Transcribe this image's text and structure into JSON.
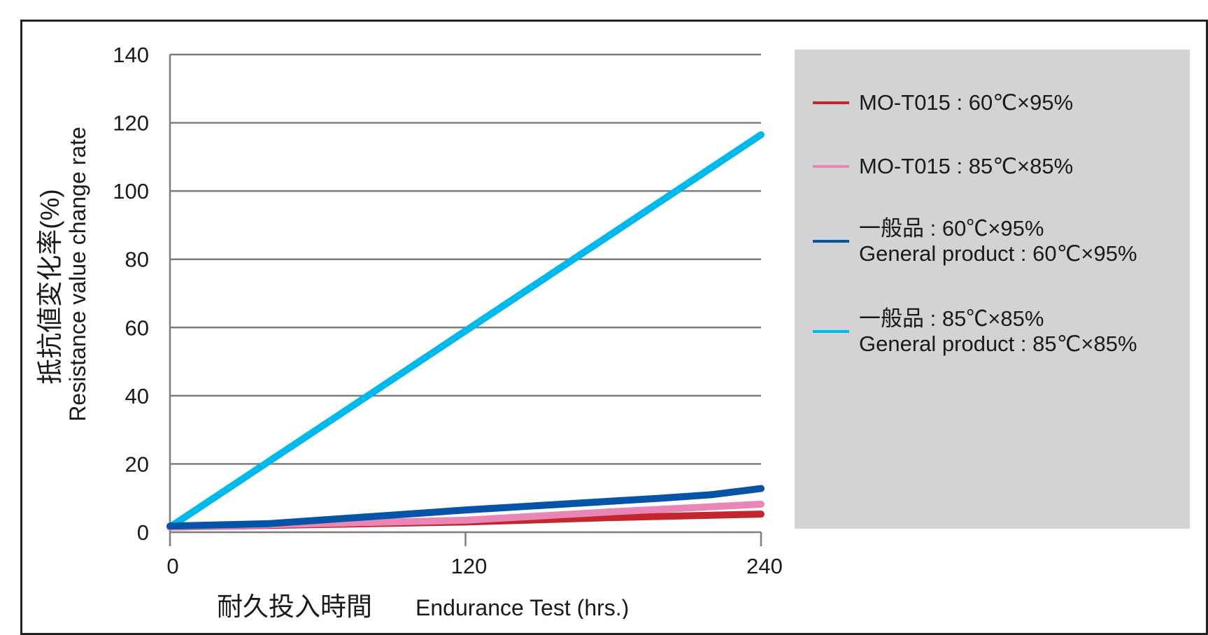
{
  "chart_data": {
    "type": "line",
    "title": "",
    "xlabel": "耐久投入時間",
    "xlabel_en": "Endurance Test (hrs.)",
    "ylabel": "抵抗値変化率(%)",
    "ylabel_en": "Resistance value change rate",
    "xlim": [
      0,
      240
    ],
    "ylim": [
      0,
      140
    ],
    "x_ticks": [
      "0",
      "120",
      "240"
    ],
    "y_ticks": [
      "0",
      "20",
      "40",
      "60",
      "80",
      "100",
      "120",
      "140"
    ],
    "grid": "horizontal",
    "legend_position": "right",
    "series": [
      {
        "name": "一般品 : 85℃×85%",
        "name_en": "General product : 85℃×85%",
        "color": "#00b9ec",
        "x": [
          0,
          240
        ],
        "y": [
          1.5,
          116.5
        ]
      },
      {
        "name": "MO-T015 : 60℃×95%",
        "color": "#c1272d",
        "x": [
          0,
          40,
          120,
          180,
          240
        ],
        "y": [
          1.5,
          2.0,
          3.0,
          4.3,
          5.3
        ]
      },
      {
        "name": "MO-T015 : 85℃×85%",
        "color": "#e986b5",
        "x": [
          0,
          40,
          120,
          180,
          240
        ],
        "y": [
          1.5,
          2.2,
          3.5,
          6.0,
          8.2
        ]
      },
      {
        "name": "一般品 : 60℃×95%",
        "name_en": "General product : 60℃×95%",
        "color": "#0554a8",
        "x": [
          0,
          40,
          120,
          200,
          220,
          240
        ],
        "y": [
          1.8,
          2.5,
          6.5,
          10.0,
          11.0,
          12.8
        ]
      }
    ]
  },
  "legend": {
    "items": [
      {
        "line1": "MO-T015 : 60℃×95%",
        "line2": "",
        "color": "#c1272d"
      },
      {
        "line1": "MO-T015 : 85℃×85%",
        "line2": "",
        "color": "#e986b5"
      },
      {
        "line1": "一般品 : 60℃×95%",
        "line2": "General product : 60℃×95%",
        "color": "#0554a8"
      },
      {
        "line1": "一般品 : 85℃×85%",
        "line2": "General product : 85℃×85%",
        "color": "#00b9ec"
      }
    ]
  }
}
